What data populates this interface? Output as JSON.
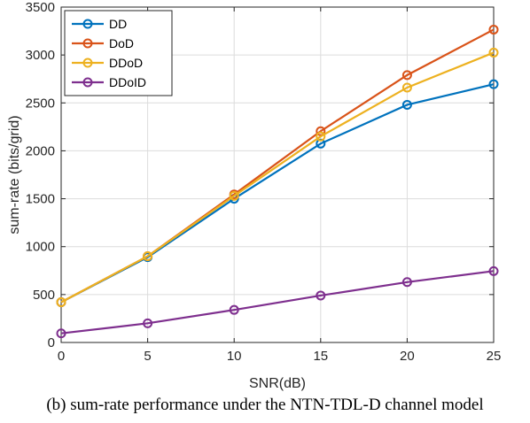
{
  "caption": "(b) sum-rate performance under the NTN-TDL-D channel model",
  "chart_data": {
    "type": "line",
    "xlabel": "SNR(dB)",
    "ylabel": "sum-rate (bits/grid)",
    "xlim": [
      0,
      25
    ],
    "ylim": [
      0,
      3500
    ],
    "xticks": [
      0,
      5,
      10,
      15,
      20,
      25
    ],
    "yticks": [
      0,
      500,
      1000,
      1500,
      2000,
      2500,
      3000,
      3500
    ],
    "grid": true,
    "legend_position": "top-left",
    "x": [
      0,
      5,
      10,
      15,
      20,
      25
    ],
    "series": [
      {
        "name": "DD",
        "color": "#0072BD",
        "marker": "circle",
        "values": [
          420,
          890,
          1500,
          2075,
          2480,
          2695
        ]
      },
      {
        "name": "DoD",
        "color": "#D95319",
        "marker": "circle",
        "values": [
          420,
          900,
          1545,
          2205,
          2790,
          3265
        ]
      },
      {
        "name": "DDoD",
        "color": "#EDB120",
        "marker": "circle",
        "values": [
          420,
          900,
          1530,
          2150,
          2660,
          3025
        ]
      },
      {
        "name": "DDoID",
        "color": "#7E2F8E",
        "marker": "circle",
        "values": [
          95,
          200,
          340,
          490,
          630,
          745
        ]
      }
    ]
  }
}
